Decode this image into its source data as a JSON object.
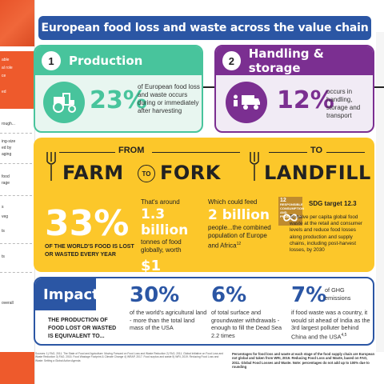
{
  "header": {
    "title": "European food loss and waste across the value chain"
  },
  "stages": {
    "production": {
      "number": "1",
      "title": "Production",
      "percent": "23%",
      "description": "of European food loss and waste occurs during or immediately after harvesting",
      "icon": "tractor-icon",
      "color": "#48c49c"
    },
    "handling": {
      "number": "2",
      "title": "Handling & storage",
      "percent": "12%",
      "description": "occurs in handling, storage and transport",
      "icon": "truck-icon",
      "color": "#7b2f91"
    }
  },
  "farm_to_fork": {
    "farm": "FARM",
    "from": "FROM",
    "to_1": "TO",
    "fork": "FORK",
    "to_2": "TO",
    "landfill": "LANDFILL",
    "headline_percent": "33%",
    "headline_caption": "OF THE WORLD'S FOOD IS LOST OR WASTED EVERY YEAR",
    "col1_intro": "That's around",
    "col1_tonnes": "1.3 billion",
    "col1_text": "tonnes of food globally, worth",
    "col1_value": "$1 trillion",
    "col2_intro": "Which could feed",
    "col2_people": "2 billion",
    "col2_text": "people...the combined population of Europe and Africa",
    "col2_sup": "12",
    "sdg_badge_number": "12",
    "sdg_badge_text": "RESPONSIBLE CONSUMPTION AND PRODUCTION",
    "sdg_title": "SDG target 12.3",
    "sdg_desc": "To halve per capita global food waste at the retail and consumer levels and reduce food losses along production and supply chains, including post-harvest losses, by 2030",
    "color": "#fcc72a"
  },
  "impact": {
    "title": "Impact",
    "caption": "THE PRODUCTION OF FOOD LOST OR WASTED IS EQUIVALENT TO...",
    "items": [
      {
        "percent": "30%",
        "desc": "of the world's agricultural land - more than the total land mass of the USA"
      },
      {
        "percent": "6%",
        "desc": "of total surface and groundwater withdrawals - enough to fill the Dead Sea 2.2 times"
      },
      {
        "percent": "7%",
        "sub": "of GHG emissions",
        "desc": "if food waste was a country, it would sit ahead of India as the 3rd largest polluter behind China and the USA",
        "sup": "4,5"
      }
    ],
    "color": "#2b56a4"
  },
  "footer": {
    "sources": "Sources: 1) FAO, 2011. The State of Food and Agriculture: Moving Forward on Food Loss and Waste Reduction 2) FAO, 2011. Global Initiative on Food Loss and Waste Reduction 3) FAO, 2015. Food Wastage Footprint & Climate Change 4) WRAP, 2017. Food surplus and waste 5) WRI, 2019. Reducing Food Loss and Waste: Setting a Global Action Agenda",
    "note": "Percentages for food loss and waste at each stage of the food supply chain are European not global and taken from WRI, 2019. Reducing Food Loss and Waste, based on FAO, 2011. Global Food Losses and Waste. Note: percentages do not add up to 100% due to rounding"
  },
  "left_panel": {
    "lines": [
      "able",
      "al role",
      "ce",
      "ed",
      "rough...",
      "ing-size",
      "ed by",
      "aging",
      "food",
      "rage",
      "s",
      "veg",
      "ts",
      "ts",
      "overall"
    ]
  }
}
